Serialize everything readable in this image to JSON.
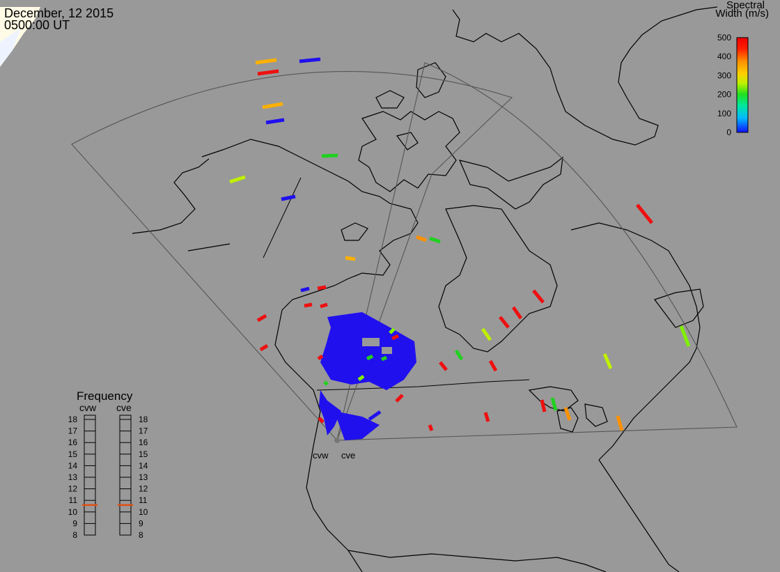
{
  "header": {
    "date": "December, 12 2015",
    "time": "0500:00 UT"
  },
  "colorbar": {
    "title_line1": "Spectral",
    "title_line2": "Width (m/s)",
    "ticks": [
      "500",
      "400",
      "300",
      "200",
      "100",
      "0"
    ],
    "range": [
      0,
      500
    ],
    "colors": [
      "#1010ff",
      "#00b8ff",
      "#00e8a0",
      "#20e020",
      "#c0f000",
      "#ffd000",
      "#ff9000",
      "#ff2000",
      "#ee0000"
    ]
  },
  "frequency": {
    "title": "Frequency",
    "radars": [
      "cvw",
      "cve"
    ],
    "scale": [
      "18",
      "17",
      "16",
      "15",
      "14",
      "13",
      "12",
      "11",
      "10",
      "9",
      "8"
    ],
    "range_mhz": [
      8,
      18
    ],
    "cvw_mhz": 10.6,
    "cve_mhz": 10.6,
    "marker_color": "#e05010"
  },
  "radar_sites": {
    "labels": [
      "cvw",
      "cve"
    ]
  },
  "colors": {
    "background": "#999999",
    "land_outline": "#000000",
    "fov_outline": "#555555",
    "site_marker": "#777777"
  }
}
